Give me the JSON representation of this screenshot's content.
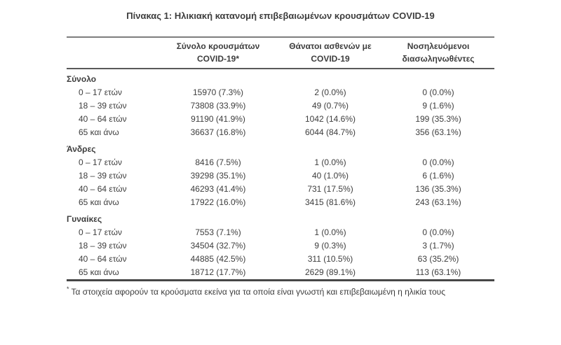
{
  "title": "Πίνακας 1: Ηλικιακή κατανομή επιβεβαιωμένων κρουσμάτων COVID-19",
  "colors": {
    "text": "#3d3d3d",
    "rule_top": "#7d7d7d",
    "rule_header": "#595959",
    "rule_bottom": "#474747"
  },
  "table": {
    "columns": [
      {
        "line1": "",
        "line2": ""
      },
      {
        "line1": "Σύνολο κρουσμάτων",
        "line2": "COVID-19*"
      },
      {
        "line1": "Θάνατοι ασθενών με",
        "line2": "COVID-19"
      },
      {
        "line1": "Νοσηλευόμενοι",
        "line2": "διασωληνωθέντες"
      }
    ],
    "sections": [
      {
        "label": "Σύνολο",
        "rows": [
          {
            "age": "0 – 17 ετών",
            "cases": "15970 (7.3%)",
            "deaths": "2 (0.0%)",
            "intubated": "0 (0.0%)"
          },
          {
            "age": "18 – 39 ετών",
            "cases": "73808 (33.9%)",
            "deaths": "49 (0.7%)",
            "intubated": "9 (1.6%)"
          },
          {
            "age": "40 – 64 ετών",
            "cases": "91190 (41.9%)",
            "deaths": "1042 (14.6%)",
            "intubated": "199 (35.3%)"
          },
          {
            "age": "65 και άνω",
            "cases": "36637 (16.8%)",
            "deaths": "6044 (84.7%)",
            "intubated": "356 (63.1%)"
          }
        ]
      },
      {
        "label": "Άνδρες",
        "rows": [
          {
            "age": "0 – 17 ετών",
            "cases": "8416 (7.5%)",
            "deaths": "1 (0.0%)",
            "intubated": "0 (0.0%)"
          },
          {
            "age": "18 – 39 ετών",
            "cases": "39298 (35.1%)",
            "deaths": "40 (1.0%)",
            "intubated": "6 (1.6%)"
          },
          {
            "age": "40 – 64 ετών",
            "cases": "46293 (41.4%)",
            "deaths": "731 (17.5%)",
            "intubated": "136 (35.3%)"
          },
          {
            "age": "65 και άνω",
            "cases": "17922 (16.0%)",
            "deaths": "3415 (81.6%)",
            "intubated": "243 (63.1%)"
          }
        ]
      },
      {
        "label": "Γυναίκες",
        "rows": [
          {
            "age": "0 – 17 ετών",
            "cases": "7553 (7.1%)",
            "deaths": "1 (0.0%)",
            "intubated": "0 (0.0%)"
          },
          {
            "age": "18 – 39 ετών",
            "cases": "34504 (32.7%)",
            "deaths": "9 (0.3%)",
            "intubated": "3 (1.7%)"
          },
          {
            "age": "40 – 64 ετών",
            "cases": "44885 (42.5%)",
            "deaths": "311 (10.5%)",
            "intubated": "63 (35.2%)"
          },
          {
            "age": "65 και άνω",
            "cases": "18712 (17.7%)",
            "deaths": "2629 (89.1%)",
            "intubated": "113 (63.1%)"
          }
        ]
      }
    ]
  },
  "footnote": {
    "marker": "*",
    "text": "Τα στοιχεία αφορούν τα κρούσματα εκείνα για τα οποία είναι γνωστή και επιβεβαιωμένη η ηλικία τους"
  }
}
